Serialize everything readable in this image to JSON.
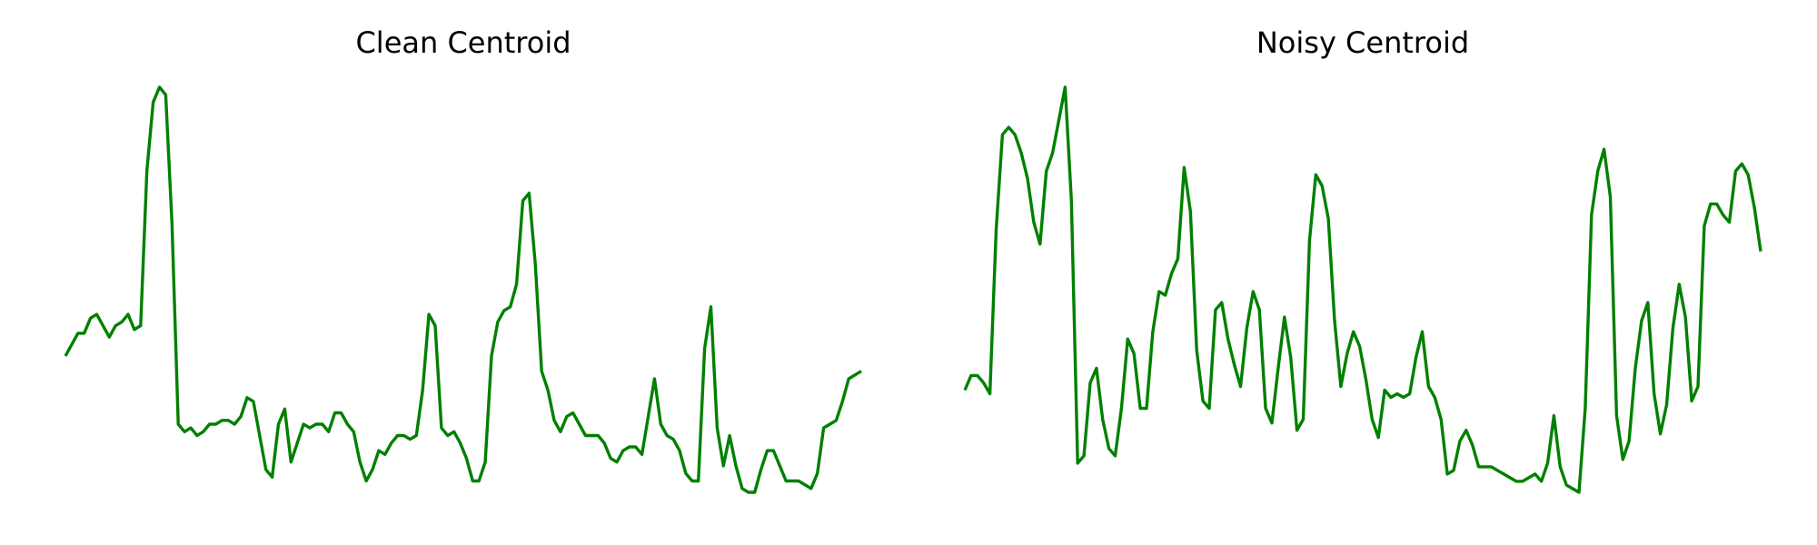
{
  "chart_data": [
    {
      "type": "line",
      "title": "Clean Centroid",
      "xlabel": "",
      "ylabel": "",
      "axes_visible": false,
      "grid": false,
      "series": [
        {
          "color": "#008000",
          "values": [
            0.33,
            0.36,
            0.39,
            0.39,
            0.43,
            0.44,
            0.41,
            0.38,
            0.41,
            0.42,
            0.44,
            0.4,
            0.41,
            0.82,
            1.0,
            1.04,
            1.02,
            0.68,
            0.15,
            0.13,
            0.14,
            0.12,
            0.13,
            0.15,
            0.15,
            0.16,
            0.16,
            0.15,
            0.17,
            0.22,
            0.21,
            0.12,
            0.03,
            0.01,
            0.15,
            0.19,
            0.05,
            0.1,
            0.15,
            0.14,
            0.15,
            0.15,
            0.13,
            0.18,
            0.18,
            0.15,
            0.13,
            0.05,
            0.0,
            0.03,
            0.08,
            0.07,
            0.1,
            0.12,
            0.12,
            0.11,
            0.12,
            0.24,
            0.44,
            0.41,
            0.14,
            0.12,
            0.13,
            0.1,
            0.06,
            0.0,
            0.0,
            0.05,
            0.33,
            0.42,
            0.45,
            0.46,
            0.52,
            0.74,
            0.76,
            0.57,
            0.29,
            0.24,
            0.16,
            0.13,
            0.17,
            0.18,
            0.15,
            0.12,
            0.12,
            0.12,
            0.1,
            0.06,
            0.05,
            0.08,
            0.09,
            0.09,
            0.07,
            0.17,
            0.27,
            0.15,
            0.12,
            0.11,
            0.08,
            0.02,
            0.0,
            0.0,
            0.35,
            0.46,
            0.14,
            0.04,
            0.12,
            0.04,
            -0.02,
            -0.03,
            -0.03,
            0.03,
            0.08,
            0.08,
            0.04,
            0.0,
            0.0,
            0.0,
            -0.01,
            -0.02,
            0.02,
            0.14,
            0.15,
            0.16,
            0.21,
            0.27,
            0.28,
            0.29
          ]
        }
      ]
    },
    {
      "type": "line",
      "title": "Noisy Centroid",
      "xlabel": "",
      "ylabel": "",
      "axes_visible": false,
      "grid": false,
      "series": [
        {
          "color": "#008000",
          "values": [
            0.38,
            0.42,
            0.42,
            0.4,
            0.37,
            0.82,
            1.08,
            1.1,
            1.08,
            1.03,
            0.96,
            0.84,
            0.78,
            0.98,
            1.03,
            1.12,
            1.21,
            0.9,
            0.18,
            0.2,
            0.4,
            0.44,
            0.3,
            0.22,
            0.2,
            0.33,
            0.52,
            0.48,
            0.33,
            0.33,
            0.54,
            0.65,
            0.64,
            0.7,
            0.74,
            0.99,
            0.87,
            0.49,
            0.35,
            0.33,
            0.6,
            0.62,
            0.52,
            0.45,
            0.39,
            0.55,
            0.65,
            0.6,
            0.33,
            0.29,
            0.44,
            0.58,
            0.47,
            0.27,
            0.3,
            0.79,
            0.97,
            0.94,
            0.85,
            0.57,
            0.39,
            0.48,
            0.54,
            0.5,
            0.41,
            0.3,
            0.25,
            0.38,
            0.36,
            0.37,
            0.36,
            0.37,
            0.47,
            0.54,
            0.39,
            0.36,
            0.3,
            0.15,
            0.16,
            0.24,
            0.27,
            0.23,
            0.17,
            0.17,
            0.17,
            0.16,
            0.15,
            0.14,
            0.13,
            0.13,
            0.14,
            0.15,
            0.13,
            0.18,
            0.31,
            0.17,
            0.12,
            0.11,
            0.1,
            0.33,
            0.86,
            0.98,
            1.04,
            0.91,
            0.31,
            0.19,
            0.24,
            0.44,
            0.57,
            0.62,
            0.37,
            0.26,
            0.34,
            0.55,
            0.67,
            0.58,
            0.35,
            0.39,
            0.83,
            0.89,
            0.89,
            0.86,
            0.84,
            0.98,
            1.0,
            0.97,
            0.88,
            0.76
          ]
        }
      ]
    }
  ]
}
